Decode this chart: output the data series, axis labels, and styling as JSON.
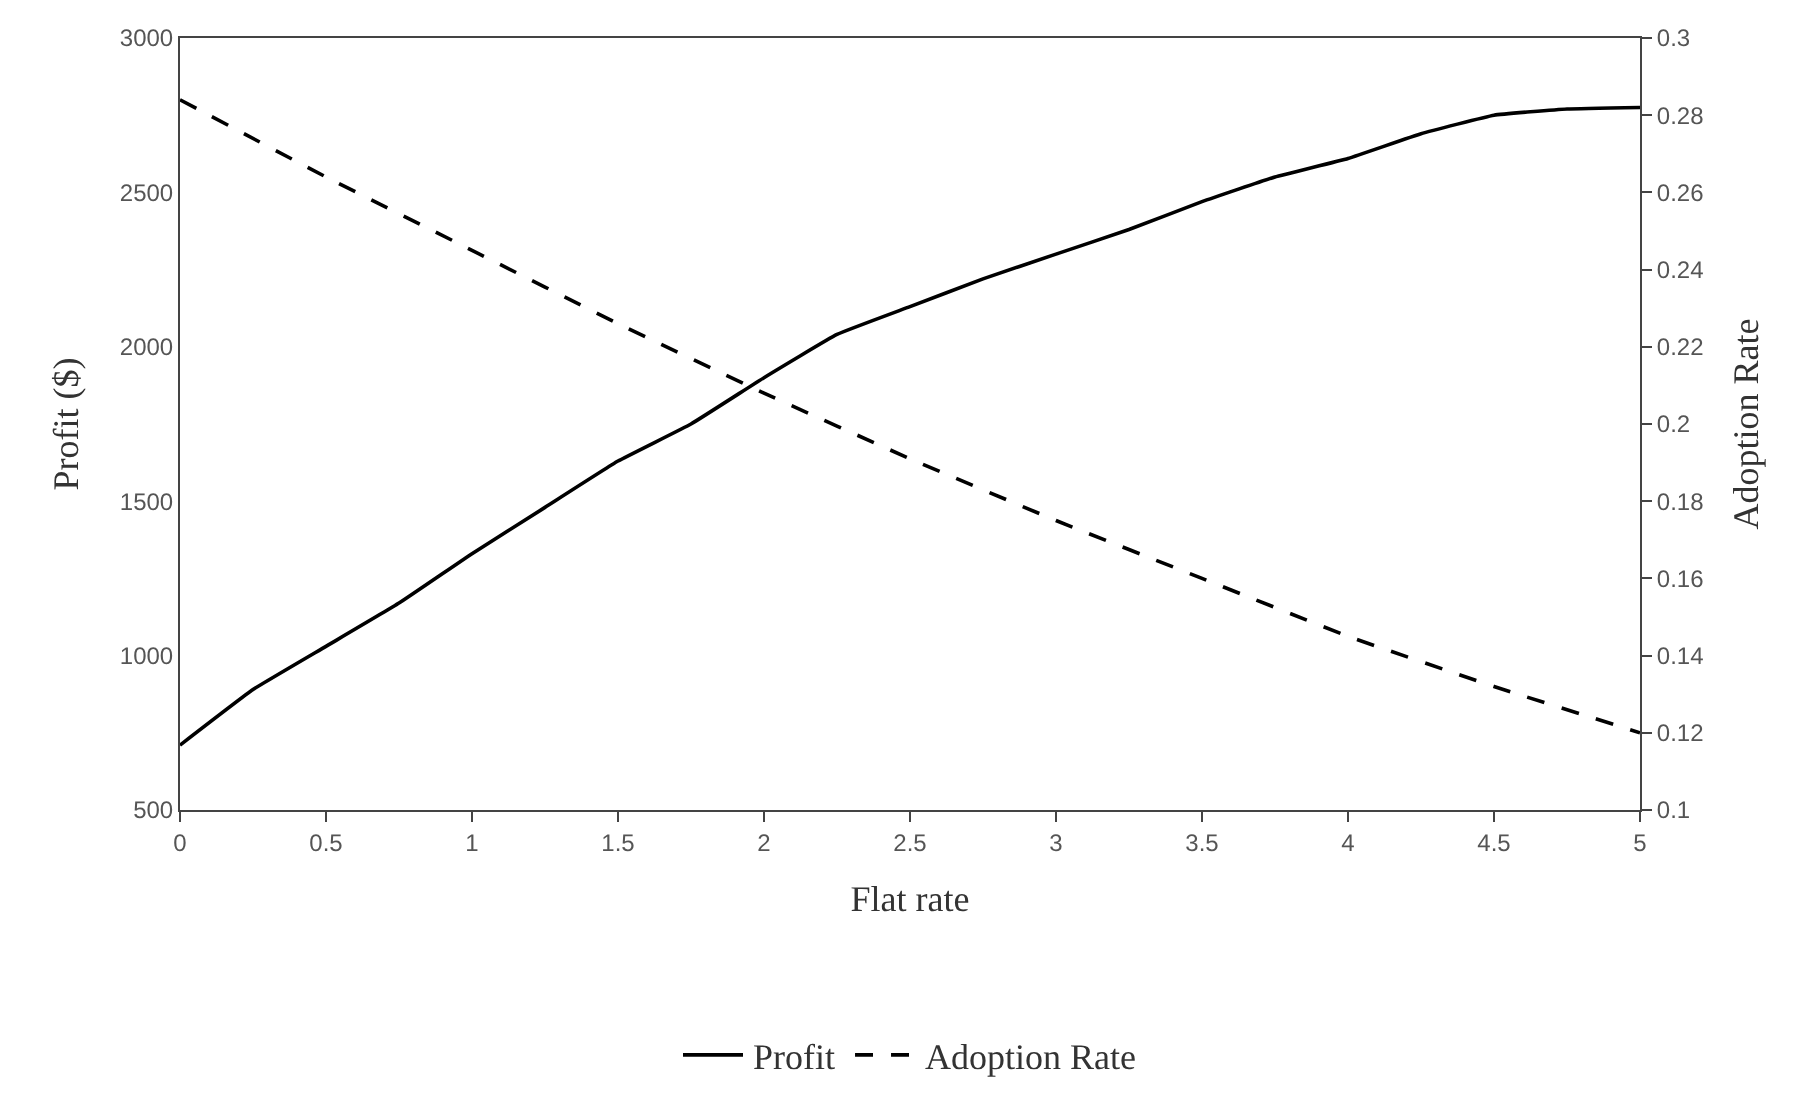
{
  "chart_data": {
    "type": "line",
    "xlabel": "Flat rate",
    "ylabel": "Profit ($)",
    "y2label": "Adoption Rate",
    "xlim": [
      0,
      5
    ],
    "xticks": [
      0,
      0.5,
      1,
      1.5,
      2,
      2.5,
      3,
      3.5,
      4,
      4.5,
      5
    ],
    "ylim": [
      500,
      3000
    ],
    "yticks": [
      500,
      1000,
      1500,
      2000,
      2500,
      3000
    ],
    "y2lim": [
      0.1,
      0.3
    ],
    "y2ticks": [
      0.1,
      0.12,
      0.14,
      0.16,
      0.18,
      0.2,
      0.22,
      0.24,
      0.26,
      0.28,
      0.3
    ],
    "legend": "bottom",
    "marker": "none",
    "series": [
      {
        "name": "Profit",
        "color": "#000000",
        "line_style": "solid",
        "x": [
          0,
          0.25,
          0.5,
          0.75,
          1,
          1.25,
          1.5,
          1.75,
          2,
          2.25,
          2.5,
          2.75,
          3,
          3.25,
          3.5,
          3.75,
          4,
          4.25,
          4.5,
          4.75,
          5
        ],
        "values": [
          710,
          890,
          1030,
          1170,
          1330,
          1480,
          1630,
          1750,
          1900,
          2040,
          2130,
          2220,
          2300,
          2380,
          2470,
          2550,
          2610,
          2690,
          2750,
          2770,
          2775
        ]
      },
      {
        "name": "Adoption Rate",
        "color": "#000000",
        "line_style": "dashed",
        "axis": "y2",
        "x": [
          0,
          0.5,
          1,
          1.5,
          2,
          2.5,
          3,
          3.5,
          4,
          4.5,
          5
        ],
        "values": [
          0.284,
          0.264,
          0.245,
          0.226,
          0.208,
          0.191,
          0.175,
          0.16,
          0.145,
          0.132,
          0.12
        ]
      }
    ]
  }
}
